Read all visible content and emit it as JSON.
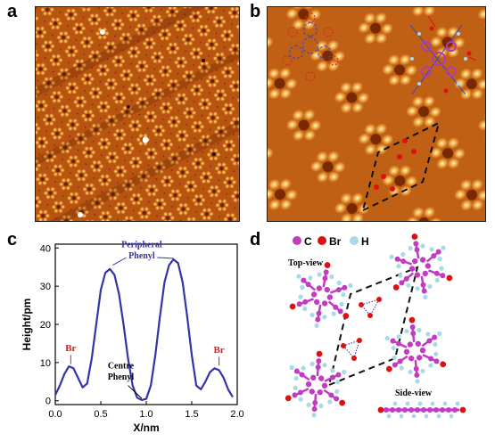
{
  "panels": {
    "a": {
      "label": "a"
    },
    "b": {
      "label": "b"
    },
    "c": {
      "label": "c"
    },
    "d": {
      "label": "d"
    }
  },
  "colors": {
    "stm_dark": "#6e1f00",
    "stm_mid": "#c86414",
    "stm_bright": "#fff0b4",
    "profile_line": "#3333aa",
    "annotation_red": "#e01b1b",
    "carbon": "#c23bc2",
    "bromine": "#dd1111",
    "hydrogen": "#a8d8ea"
  },
  "chart_data": {
    "type": "line",
    "xlabel": "X/nm",
    "ylabel": "Height/pm",
    "xlim": [
      0.0,
      2.0
    ],
    "ylim": [
      -1,
      41
    ],
    "xticks": [
      "0.0",
      "0.5",
      "1.0",
      "1.5",
      "2.0"
    ],
    "yticks": [
      "0",
      "10",
      "20",
      "30",
      "40"
    ],
    "series": [
      {
        "x": [
          0.0,
          0.05,
          0.1,
          0.15,
          0.2,
          0.25,
          0.3,
          0.35,
          0.4,
          0.45,
          0.5,
          0.55,
          0.6,
          0.65,
          0.7,
          0.75,
          0.8,
          0.85,
          0.9,
          0.95,
          1.0,
          1.05,
          1.1,
          1.15,
          1.2,
          1.25,
          1.3,
          1.35,
          1.4,
          1.45,
          1.5,
          1.55,
          1.6,
          1.65,
          1.7,
          1.75,
          1.8,
          1.85,
          1.9,
          1.95
        ],
        "values": [
          1.5,
          4,
          7,
          9,
          8.5,
          6,
          3.5,
          4.5,
          11,
          20,
          29,
          33.5,
          34.5,
          33,
          28,
          20,
          11,
          4,
          0.8,
          0.2,
          0.5,
          4,
          12,
          22,
          31,
          35.5,
          37,
          36,
          31,
          22,
          12,
          4,
          3,
          5,
          7.5,
          8.5,
          8,
          6,
          3,
          1
        ]
      }
    ],
    "annotations": [
      {
        "text": "Peripheral Phenyl",
        "x": 0.95,
        "y": 39
      },
      {
        "text": "Br",
        "x": 0.17,
        "y": 9
      },
      {
        "text": "Br",
        "x": 1.8,
        "y": 8.5
      },
      {
        "text": "Centre Phenyl",
        "x": 0.95,
        "y": 0
      }
    ],
    "annotation_text": {
      "peripheral_line1": "Peripheral",
      "peripheral_line2": "Phenyl",
      "br_left": "Br",
      "br_right": "Br",
      "centre_line1": "Centre",
      "centre_line2": "Phenyl"
    }
  },
  "legend_d": {
    "carbon": "C",
    "bromine": "Br",
    "hydrogen": "H"
  },
  "views": {
    "top": "Top-view",
    "side": "Side-view"
  }
}
